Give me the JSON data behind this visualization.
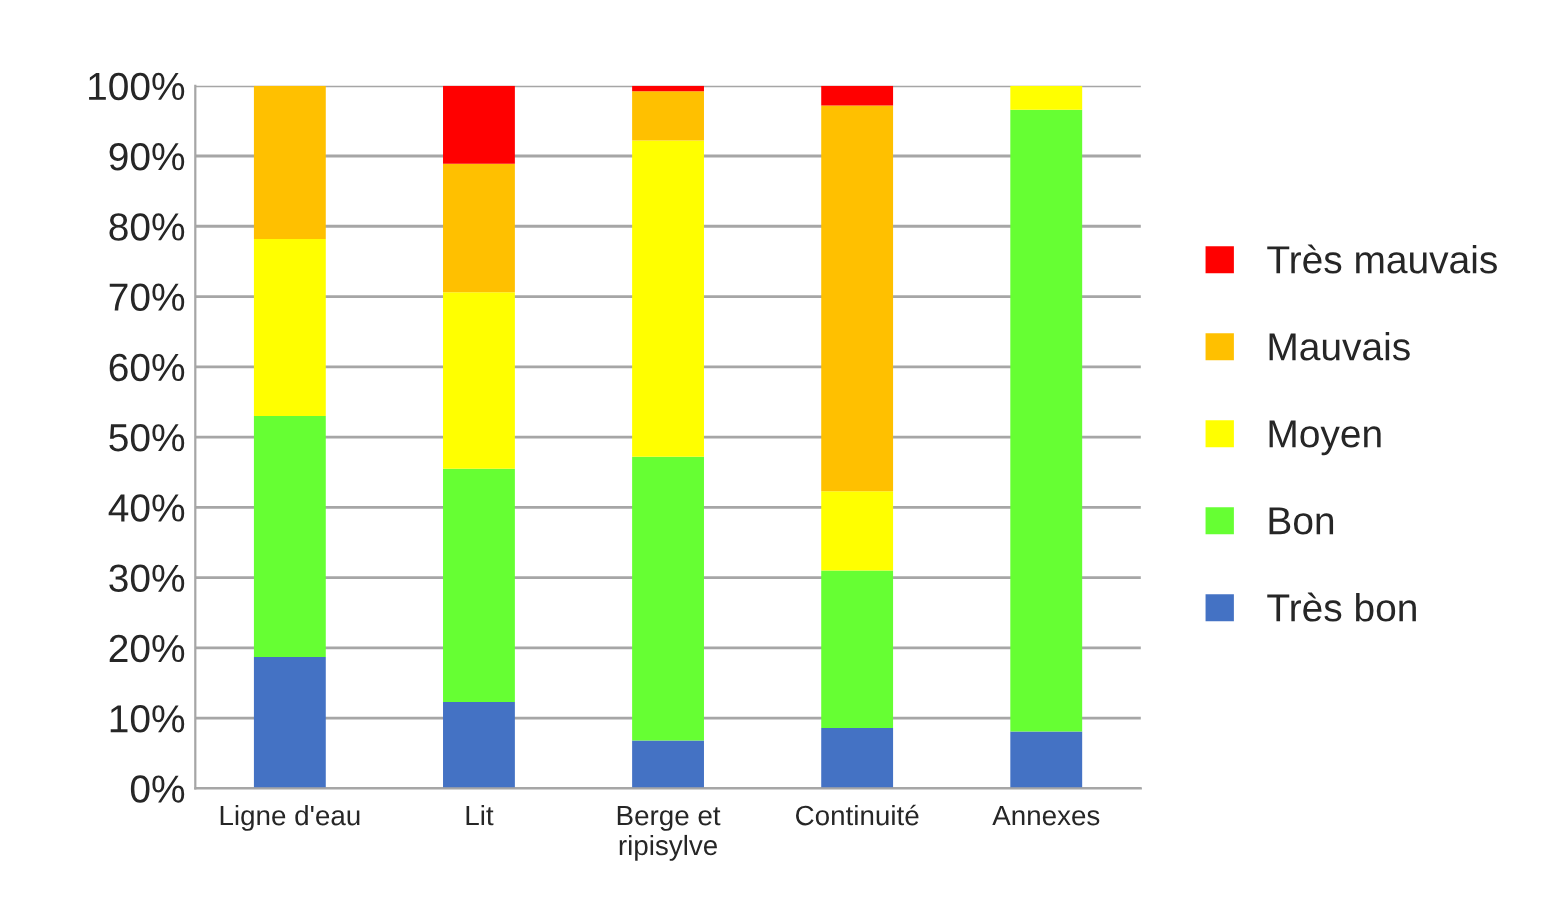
{
  "chart_data": {
    "type": "bar",
    "stacked": true,
    "categories": [
      "Ligne d'eau",
      "Lit",
      "Berge et ripisylve",
      "Continuité",
      "Annexes"
    ],
    "ylim": [
      0,
      100
    ],
    "yticks": [
      {
        "value": 0,
        "label": "0%"
      },
      {
        "value": 10,
        "label": "10%"
      },
      {
        "value": 20,
        "label": "20%"
      },
      {
        "value": 30,
        "label": "30%"
      },
      {
        "value": 40,
        "label": "40%"
      },
      {
        "value": 50,
        "label": "50%"
      },
      {
        "value": 60,
        "label": "60%"
      },
      {
        "value": 70,
        "label": "70%"
      },
      {
        "value": 80,
        "label": "80%"
      },
      {
        "value": 90,
        "label": "90%"
      },
      {
        "value": 100,
        "label": "100%"
      }
    ],
    "grid": "y",
    "legend": "right",
    "series": [
      {
        "name": "Très bon",
        "color": "#4472c4",
        "values": [
          18.7,
          12.3,
          6.8,
          8.6,
          8.1
        ]
      },
      {
        "name": "Bon",
        "color": "#66ff33",
        "values": [
          34.3,
          33.2,
          40.4,
          22.4,
          88.5
        ]
      },
      {
        "name": "Moyen",
        "color": "#ffff00",
        "values": [
          25.2,
          25.1,
          45.0,
          11.3,
          3.4
        ]
      },
      {
        "name": "Mauvais",
        "color": "#ffc000",
        "values": [
          21.8,
          18.3,
          7.0,
          54.9,
          0
        ]
      },
      {
        "name": "Très mauvais",
        "color": "#ff0000",
        "values": [
          0,
          11.1,
          0.8,
          2.8,
          0
        ]
      }
    ]
  }
}
